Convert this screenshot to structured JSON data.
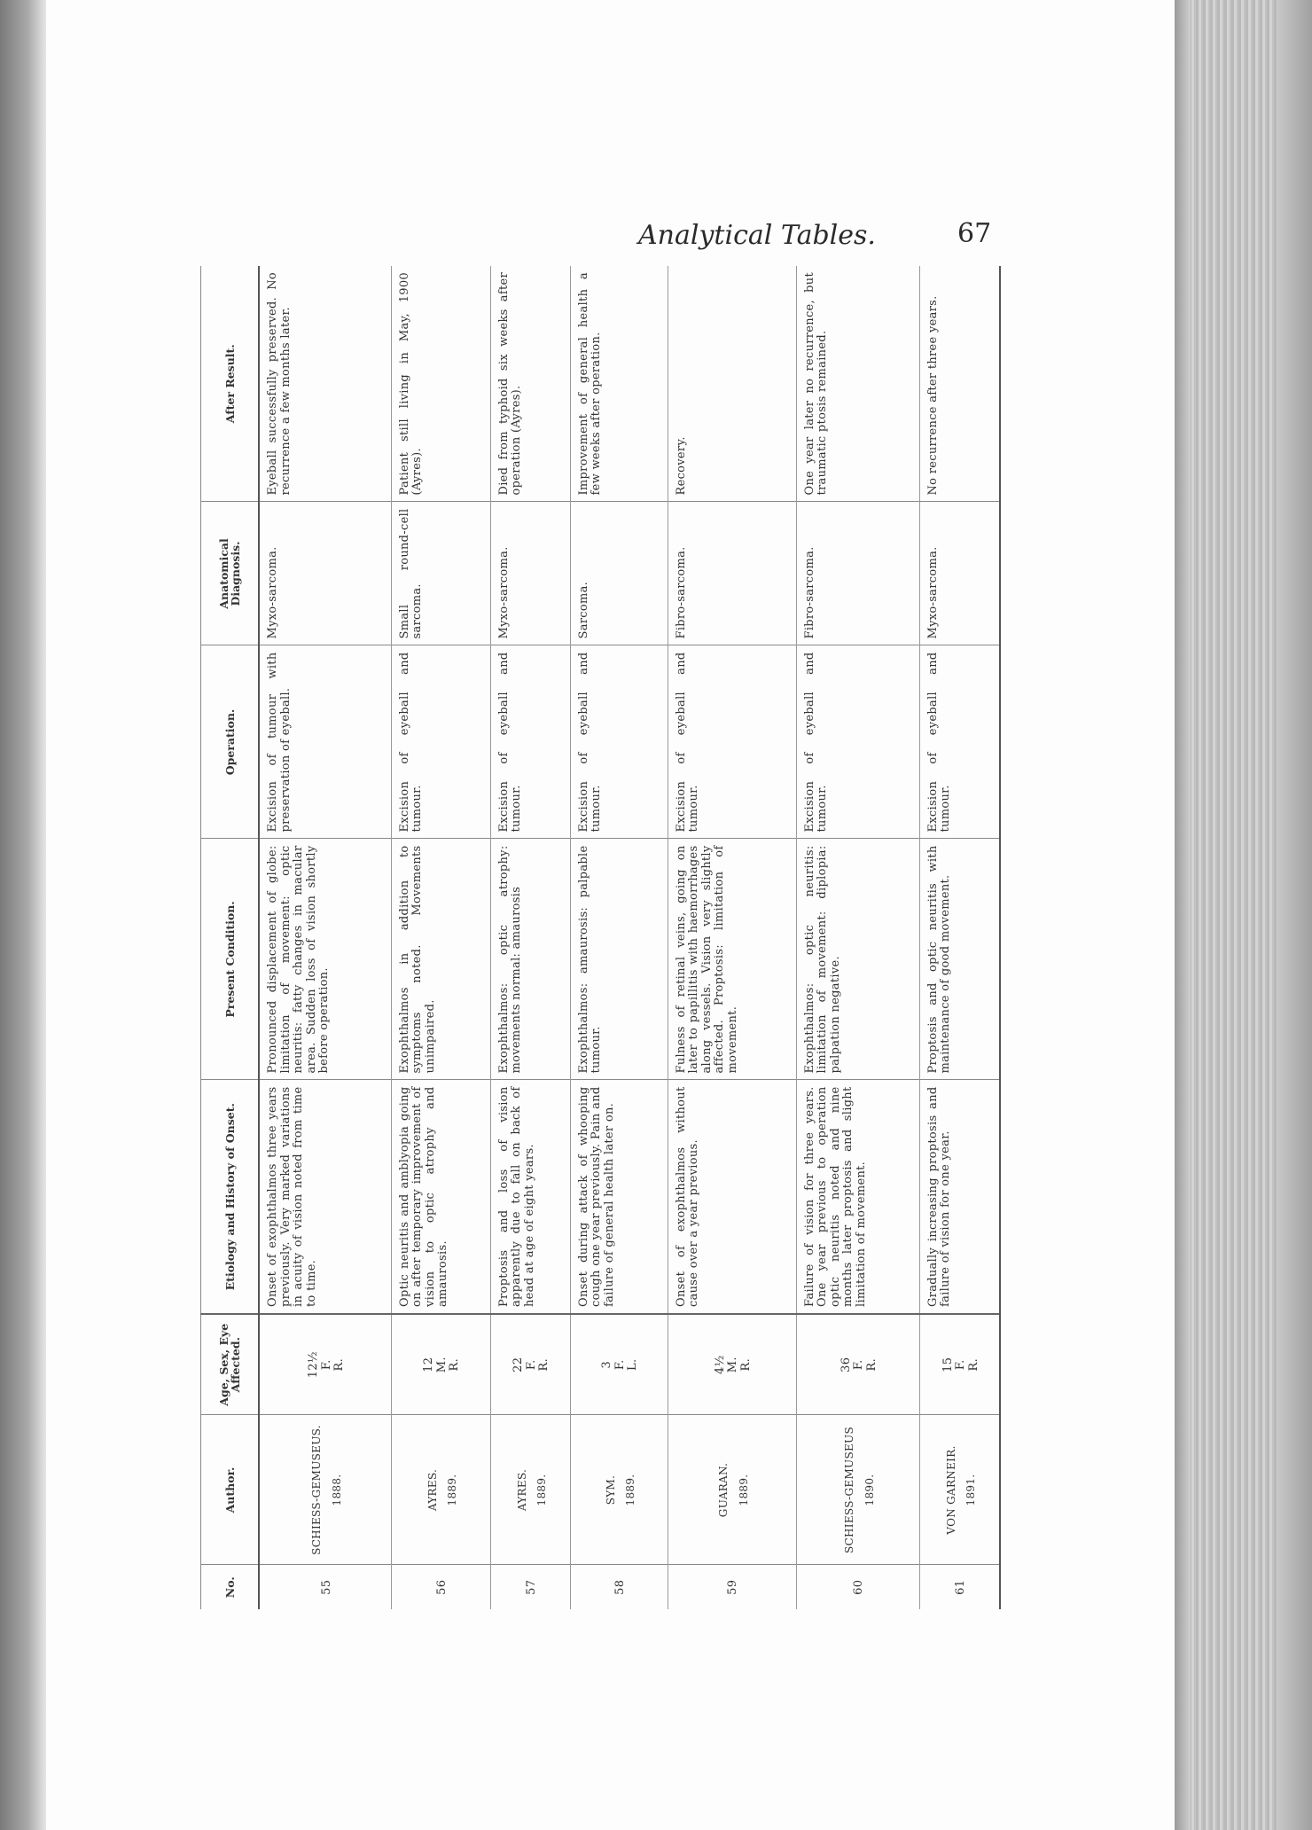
{
  "running_head": "Analytical Tables.",
  "page_number": "67",
  "table": {
    "headers": [
      "No.",
      "Author.",
      "Age, Sex, Eye Affected.",
      "Etiology and History of Onset.",
      "Present Condition.",
      "Operation.",
      "Anatomical Diagnosis.",
      "After Result."
    ],
    "rows": [
      {
        "no": "55",
        "author": "SCHIESS-GEMUSEUS.",
        "year": "1888.",
        "age": "12½",
        "sex": "F.",
        "eye": "R.",
        "etiology": "Onset of exophthalmos three years previously. Very marked variations in acuity of vision noted from time to time.",
        "present": "Pronounced displacement of globe: limitation of movement: optic neuritis: fatty changes in macular area. Sudden loss of vision shortly before operation.",
        "operation": "Excision of tumour with preservation of eyeball.",
        "diagnosis": "Myxo-sarcoma.",
        "result": "Eyeball successfully preserved. No recurrence a few months later."
      },
      {
        "no": "56",
        "author": "AYRES.",
        "year": "1889.",
        "age": "12",
        "sex": "M.",
        "eye": "R.",
        "etiology": "Optic neuritis and amblyopia going on after temporary improvement of vision to optic atrophy and amaurosis.",
        "present": "Exophthalmos in addition to symptoms noted. Movements unimpaired.",
        "operation": "Excision of eyeball and tumour.",
        "diagnosis": "Small round-cell sarcoma.",
        "result": "Patient still living in May, 1900 (Ayres)."
      },
      {
        "no": "57",
        "author": "AYRES.",
        "year": "1889.",
        "age": "22",
        "sex": "F.",
        "eye": "R.",
        "etiology": "Proptosis and loss of vision apparently due to fall on back of head at age of eight years.",
        "present": "Exophthalmos: optic atrophy: movements normal: amaurosis",
        "operation": "Excision of eyeball and tumour.",
        "diagnosis": "Myxo-sarcoma.",
        "result": "Died from typhoid six weeks after operation (Ayres)."
      },
      {
        "no": "58",
        "author": "SYM.",
        "year": "1889.",
        "age": "3",
        "sex": "F.",
        "eye": "L.",
        "etiology": "Onset during attack of whooping cough one year previously. Pain and failure of general health later on.",
        "present": "Exophthalmos: amaurosis: palpable tumour.",
        "operation": "Excision of eyeball and tumour.",
        "diagnosis": "Sarcoma.",
        "result": "Improvement of general health a few weeks after operation."
      },
      {
        "no": "59",
        "author": "GUARAN.",
        "year": "1889.",
        "age": "4½",
        "sex": "M.",
        "eye": "R.",
        "etiology": "Onset of exophthalmos without cause over a year previous.",
        "present": "Fulness of retinal veins, going on later to papillitis with haemorrhages along vessels. Vision very slightly affected. Proptosis: limitation of movement.",
        "operation": "Excision of eyeball and tumour.",
        "diagnosis": "Fibro-sarcoma.",
        "result": "Recovery."
      },
      {
        "no": "60",
        "author": "SCHIESS-GEMUSEUS",
        "year": "1890.",
        "age": "36",
        "sex": "F.",
        "eye": "R.",
        "etiology": "Failure of vision for three years. One year previous to operation optic neuritis noted and nine months later proptosis and slight limitation of movement.",
        "present": "Exophthalmos: optic neuritis: limitation of movement: diplopia: palpation negative.",
        "operation": "Excision of eyeball and tumour.",
        "diagnosis": "Fibro-sarcoma.",
        "result": "One year later no recurrence, but traumatic ptosis remained."
      },
      {
        "no": "61",
        "author": "VON GARNEIR.",
        "year": "1891.",
        "age": "15",
        "sex": "F.",
        "eye": "R.",
        "etiology": "Gradually increasing proptosis and failure of vision for one year.",
        "present": "Proptosis and optic neuritis with maintenance of good movement.",
        "operation": "Excision of eyeball and tumour.",
        "diagnosis": "Myxo-sarcoma.",
        "result": "No recurrence after three years."
      }
    ]
  }
}
